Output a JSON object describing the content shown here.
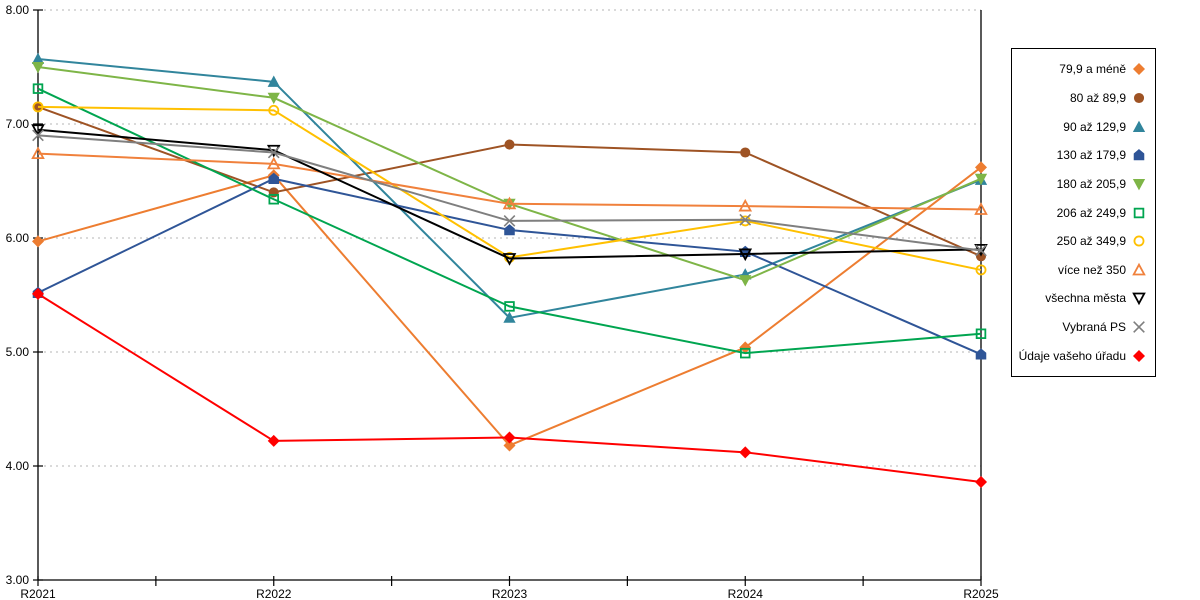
{
  "chart_data": {
    "type": "line",
    "title": "",
    "xlabel": "",
    "ylabel": "",
    "categories": [
      "R2021",
      "R2022",
      "R2023",
      "R2024",
      "R2025"
    ],
    "ylim": [
      3,
      8
    ],
    "y_ticks": [
      "3.00",
      "4.00",
      "5.00",
      "6.00",
      "7.00",
      "8.00"
    ],
    "grid": "horizontal dotted gridlines at 4.00-8.00",
    "legend_position": "right",
    "series": [
      {
        "name": "79,9 a méně",
        "color": "#ED7D31",
        "marker": "diamond",
        "filled": true,
        "values": [
          5.97,
          6.55,
          4.18,
          5.04,
          6.62
        ]
      },
      {
        "name": "80 až 89,9",
        "color": "#9E5324",
        "marker": "circle",
        "filled": true,
        "values": [
          7.15,
          6.4,
          6.82,
          6.75,
          5.84
        ]
      },
      {
        "name": "90 až 129,9",
        "color": "#31859C",
        "marker": "triangle-up",
        "filled": true,
        "values": [
          7.57,
          7.37,
          5.3,
          5.68,
          6.51
        ]
      },
      {
        "name": "130 až 179,9",
        "color": "#2F5597",
        "marker": "pentagon",
        "filled": true,
        "values": [
          5.52,
          6.52,
          6.07,
          5.88,
          4.98
        ]
      },
      {
        "name": "180 až 205,9",
        "color": "#7EB547",
        "marker": "triangle-down",
        "filled": true,
        "values": [
          7.5,
          7.23,
          6.3,
          5.63,
          6.52
        ]
      },
      {
        "name": "206 až 249,9",
        "color": "#00A550",
        "marker": "square",
        "filled": false,
        "values": [
          7.31,
          6.34,
          5.4,
          4.99,
          5.16
        ]
      },
      {
        "name": "250 až 349,9",
        "color": "#FFC000",
        "marker": "circle",
        "filled": false,
        "values": [
          7.15,
          7.12,
          5.83,
          6.15,
          5.72
        ]
      },
      {
        "name": "více než 350",
        "color": "#F0813C",
        "marker": "triangle-up",
        "filled": false,
        "values": [
          6.74,
          6.65,
          6.3,
          6.28,
          6.25
        ]
      },
      {
        "name": "všechna města",
        "color": "#000000",
        "marker": "triangle-down",
        "filled": false,
        "values": [
          6.95,
          6.77,
          5.82,
          5.86,
          5.9
        ]
      },
      {
        "name": "Vybraná PS",
        "color": "#7F7F7F",
        "marker": "x",
        "filled": false,
        "values": [
          6.9,
          6.75,
          6.15,
          6.16,
          5.89
        ]
      },
      {
        "name": "Údaje vašeho úřadu",
        "color": "#FF0000",
        "marker": "diamond",
        "filled": true,
        "values": [
          5.51,
          4.22,
          4.25,
          4.12,
          3.86
        ]
      }
    ]
  }
}
